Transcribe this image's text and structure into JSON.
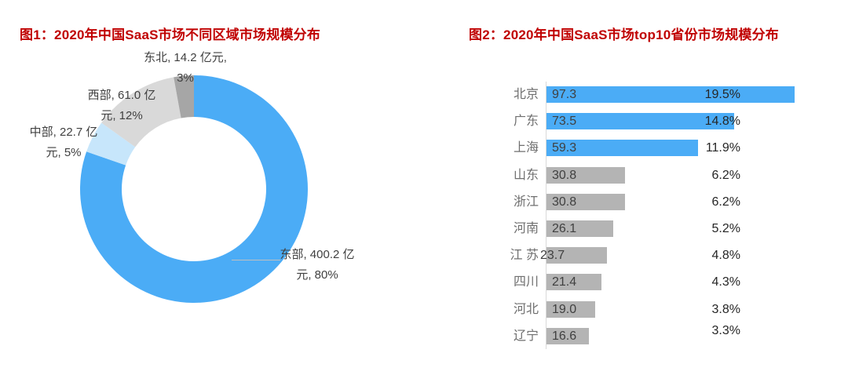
{
  "colors": {
    "title": "#C00000",
    "highlight_blue": "#4BACF6",
    "light_blue": "#C7E6FB",
    "light_gray": "#D9D9D9",
    "dark_gray": "#A6A6A6",
    "bar_gray": "#B4B4B4",
    "axis_line": "#D9D9D9",
    "label_text": "#404040"
  },
  "chart_data": [
    {
      "type": "pie",
      "subtype": "donut",
      "title": "图1：2020年中国SaaS市场不同区域市场规模分布",
      "unit": "亿元",
      "hole_ratio": 0.635,
      "start_angle_deg": 0,
      "clockwise": true,
      "legend_position": "none",
      "segments": [
        {
          "label": "东部",
          "value": 400.2,
          "pct": "80%",
          "color": "#4BACF6",
          "data_label_line1": "东部, 400.2 亿",
          "data_label_line2": "元, 80%"
        },
        {
          "label": "中部",
          "value": 22.7,
          "pct": "5%",
          "color": "#C7E6FB",
          "data_label_line1": "中部, 22.7 亿",
          "data_label_line2": "元, 5%"
        },
        {
          "label": "西部",
          "value": 61.0,
          "pct": "12%",
          "color": "#D9D9D9",
          "data_label_line1": "西部, 61.0 亿",
          "data_label_line2": "元, 12%"
        },
        {
          "label": "东北",
          "value": 14.2,
          "pct": "3%",
          "color": "#A6A6A6",
          "data_label_line1": "东北, 14.2 亿元,",
          "data_label_line2": "3%"
        }
      ]
    },
    {
      "type": "bar",
      "orientation": "horizontal",
      "title": "图2：2020年中国SaaS市场top10省份市场规模分布",
      "unit": "亿元",
      "grid": false,
      "xlim": [
        0,
        100
      ],
      "categories": [
        "北京",
        "广东",
        "上海",
        "山东",
        "浙江",
        "河南",
        "江 苏",
        "四川",
        "河北",
        "辽宁"
      ],
      "values": [
        97.3,
        73.5,
        59.3,
        30.8,
        30.8,
        26.1,
        23.7,
        21.4,
        19.0,
        16.6
      ],
      "value_labels": [
        "97.3",
        "73.5",
        "59.3",
        "30.8",
        "30.8",
        "26.1",
        "23.7",
        "21.4",
        "19.0",
        "16.6"
      ],
      "pct_labels": [
        "19.5%",
        "14.8%",
        "11.9%",
        "6.2%",
        "6.2%",
        "5.2%",
        "4.8%",
        "4.3%",
        "3.8%",
        "3.3%"
      ],
      "bar_colors": [
        "#4BACF6",
        "#4BACF6",
        "#4BACF6",
        "#B4B4B4",
        "#B4B4B4",
        "#B4B4B4",
        "#B4B4B4",
        "#B4B4B4",
        "#B4B4B4",
        "#B4B4B4"
      ],
      "value_label_outside_flags": [
        false,
        false,
        false,
        false,
        false,
        false,
        true,
        false,
        false,
        false
      ]
    }
  ]
}
